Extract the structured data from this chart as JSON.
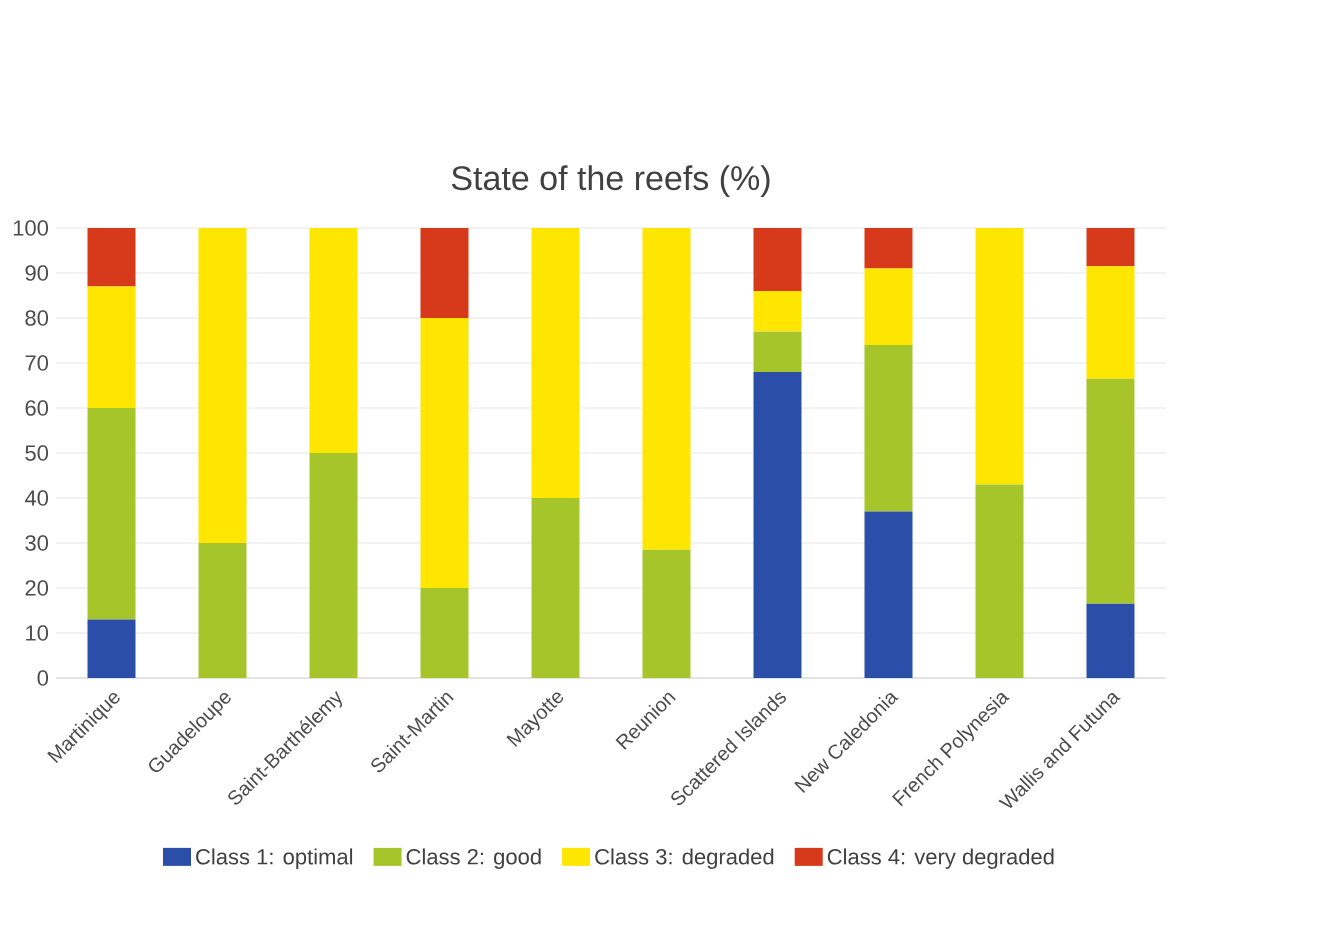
{
  "chart_data": {
    "type": "bar",
    "stacked": true,
    "title": "State of the reefs (%)",
    "categories": [
      "Martinique",
      "Guadeloupe",
      "Saint-Barthélemy",
      "Saint-Martin",
      "Mayotte",
      "Reunion",
      "Scattered Islands",
      "New Caledonia",
      "French Polynesia",
      "Wallis and Futuna"
    ],
    "series": [
      {
        "name": "Class 1: optimal",
        "color": "#2b4fa8",
        "values": [
          13,
          0,
          0,
          0,
          0,
          0,
          68,
          37,
          0,
          16.5
        ]
      },
      {
        "name": "Class 2: good",
        "color": "#a6c52b",
        "values": [
          47,
          30,
          50,
          20,
          40,
          28.5,
          9,
          37,
          43,
          50
        ]
      },
      {
        "name": "Class 3: degraded",
        "color": "#ffe600",
        "values": [
          27,
          70,
          50,
          60,
          60,
          71.5,
          9,
          17,
          57,
          25
        ]
      },
      {
        "name": "Class 4: very degraded",
        "color": "#d63a1a",
        "values": [
          13,
          0,
          0,
          20,
          0,
          0,
          14,
          9,
          0,
          8.5
        ]
      }
    ],
    "ylim": [
      0,
      100
    ],
    "yticks": [
      0,
      10,
      20,
      30,
      40,
      50,
      60,
      70,
      80,
      90,
      100
    ],
    "grid": "y",
    "legend": "bottom"
  }
}
